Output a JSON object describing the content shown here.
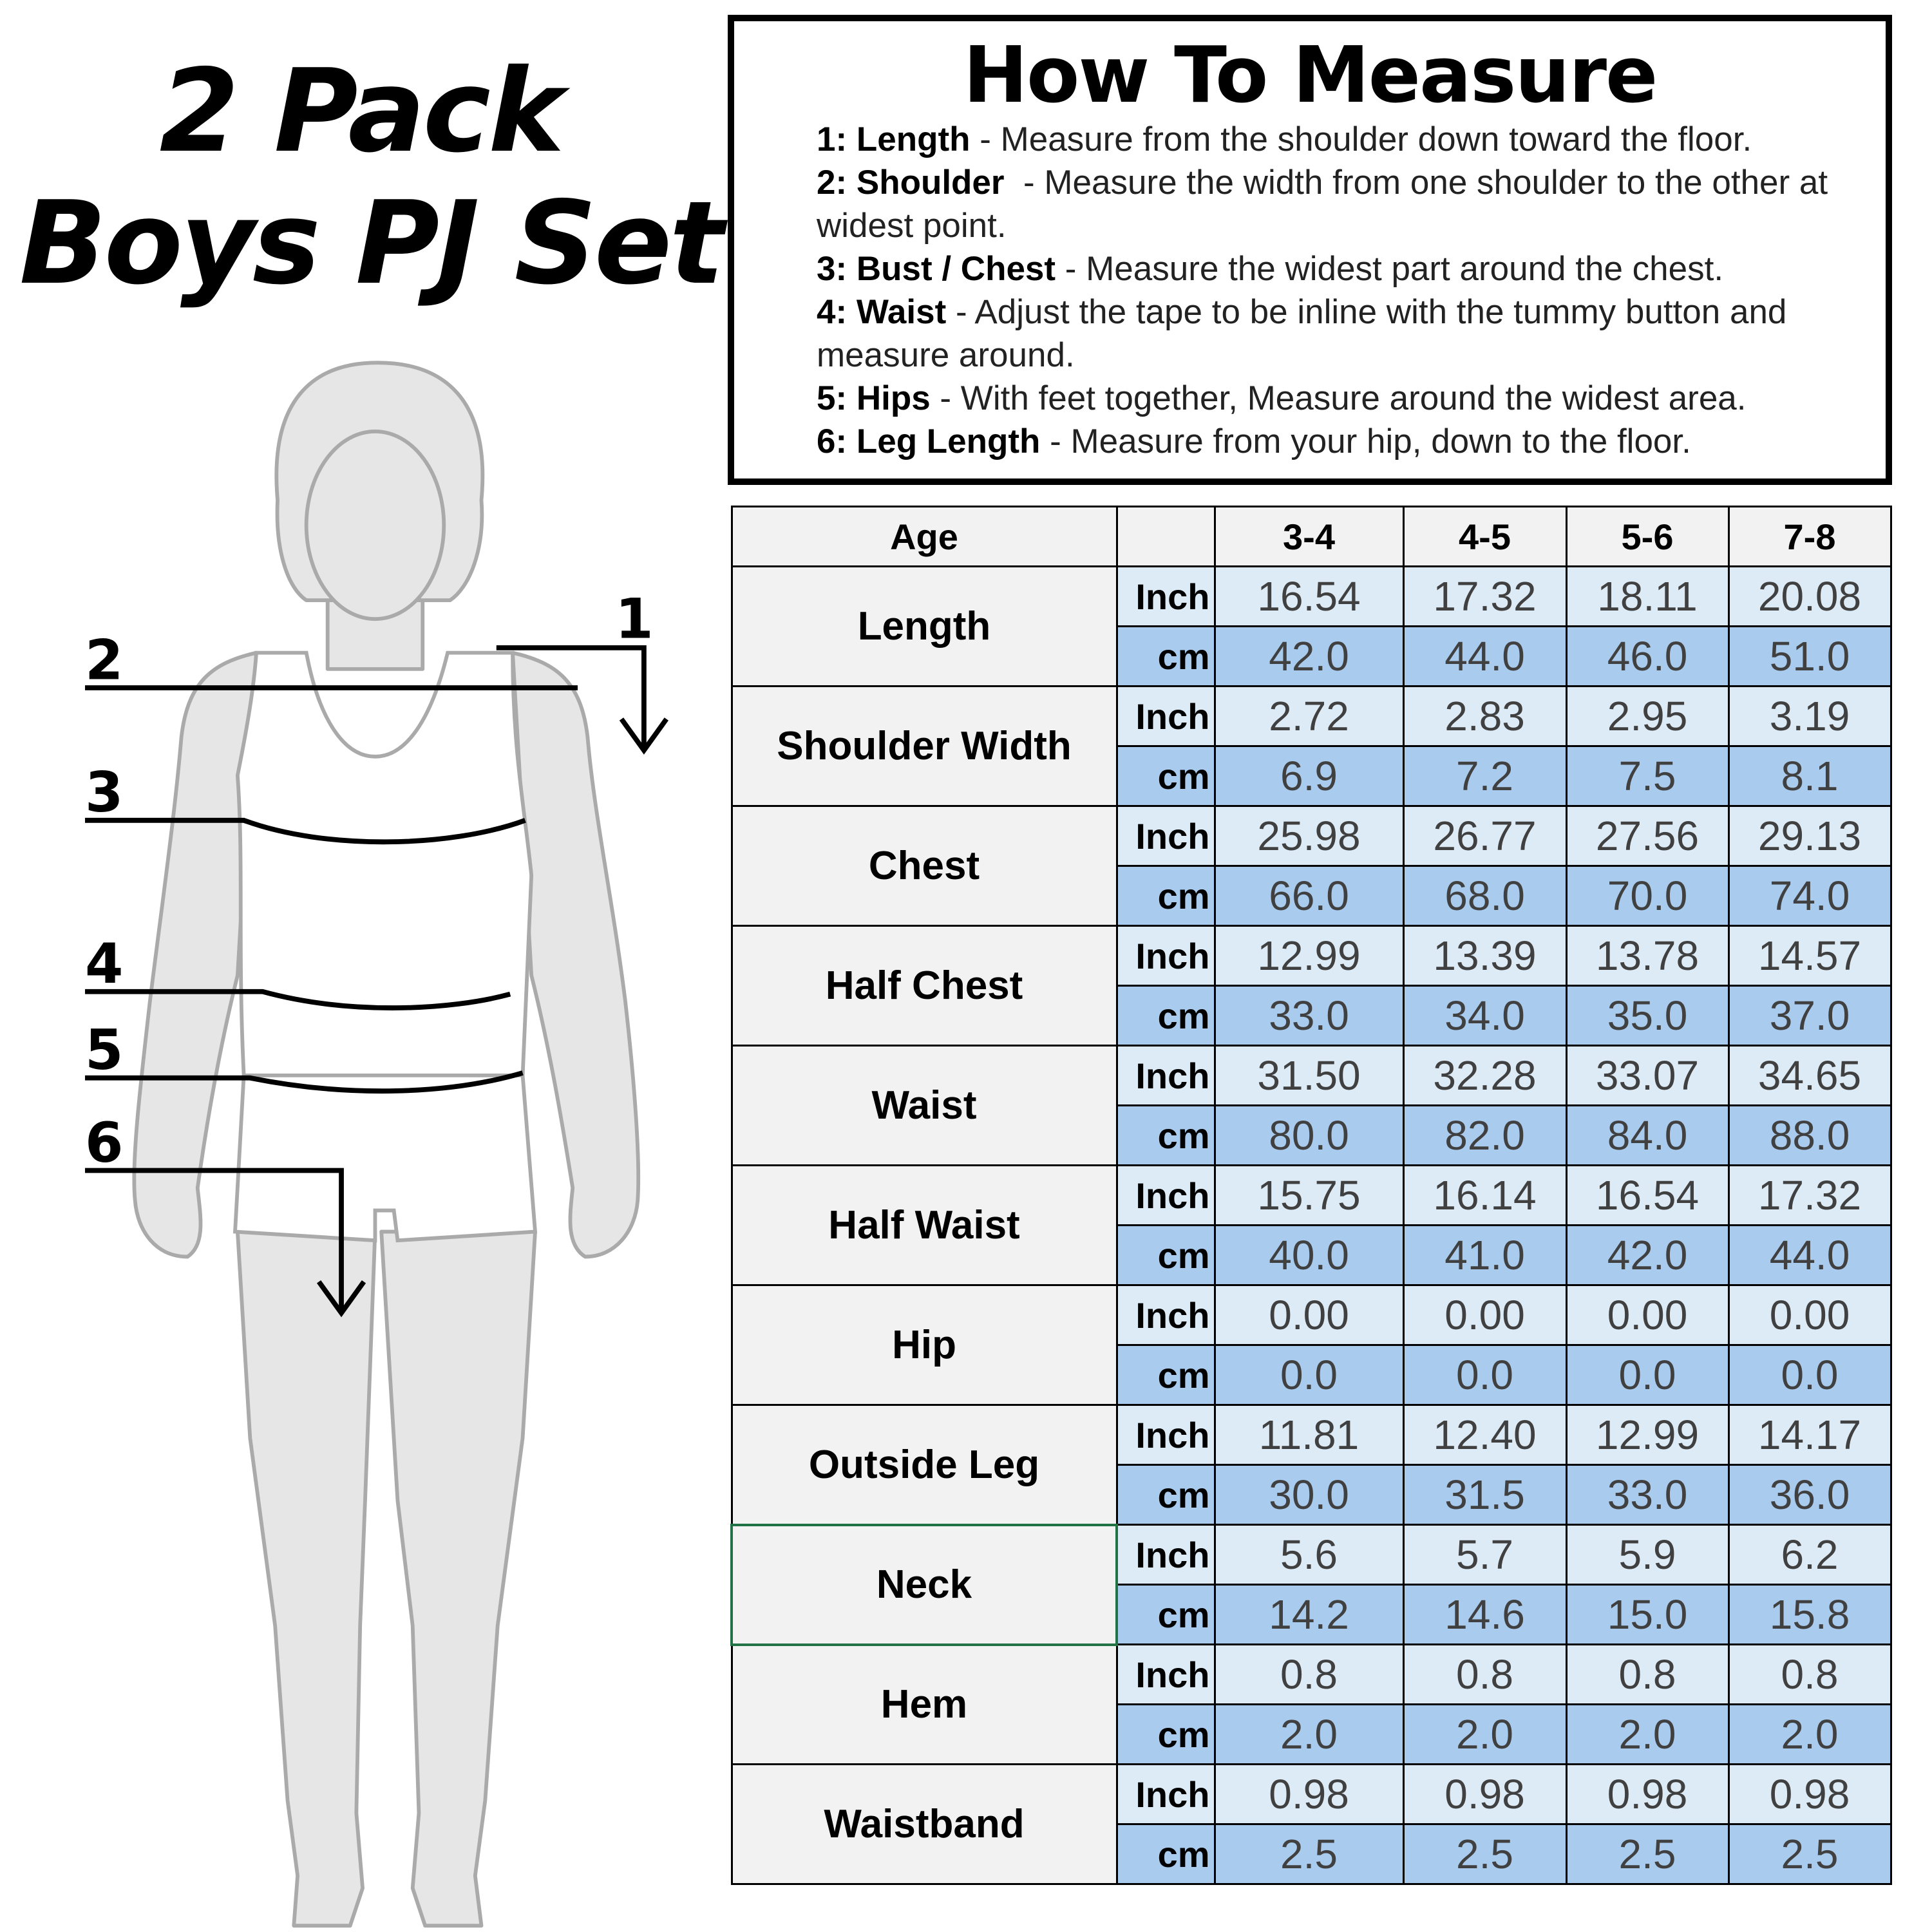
{
  "title": {
    "line1": "2 Pack",
    "line2": "Boys PJ Set"
  },
  "figure": {
    "markers": [
      "1",
      "2",
      "3",
      "4",
      "5",
      "6"
    ],
    "line_color": "#000000",
    "body_fill": "#e6e6e6",
    "garment_fill": "#ffffff"
  },
  "how_to_measure": {
    "heading": "How To Measure",
    "items": [
      {
        "label": "1: Length",
        "text": " - Measure from the shoulder down toward the floor."
      },
      {
        "label": "2: Shoulder",
        "text": "  - Measure the width from one shoulder to the other at widest point."
      },
      {
        "label": "3: Bust / Chest",
        "text": " - Measure the widest part around the chest."
      },
      {
        "label": "4: Waist",
        "text": " - Adjust the tape to be inline with the tummy button and measure around."
      },
      {
        "label": "5: Hips",
        "text": " - With feet together, Measure around the widest area."
      },
      {
        "label": "6: Leg Length",
        "text": " - Measure from your hip, down to the floor."
      }
    ]
  },
  "table": {
    "header_label": "Age",
    "ages": [
      "3-4",
      "4-5",
      "5-6",
      "7-8"
    ],
    "unit_inch": "Inch",
    "unit_cm": "cm",
    "colors": {
      "label_bg": "#f2f2f2",
      "inch_bg": "#ddebf7",
      "cm_bg": "#a9cbee",
      "selected_border": "#217346"
    },
    "rows": [
      {
        "name": "Length",
        "inch": [
          "16.54",
          "17.32",
          "18.11",
          "20.08"
        ],
        "cm": [
          "42.0",
          "44.0",
          "46.0",
          "51.0"
        ]
      },
      {
        "name": "Shoulder Width",
        "inch": [
          "2.72",
          "2.83",
          "2.95",
          "3.19"
        ],
        "cm": [
          "6.9",
          "7.2",
          "7.5",
          "8.1"
        ]
      },
      {
        "name": "Chest",
        "inch": [
          "25.98",
          "26.77",
          "27.56",
          "29.13"
        ],
        "cm": [
          "66.0",
          "68.0",
          "70.0",
          "74.0"
        ]
      },
      {
        "name": "Half Chest",
        "inch": [
          "12.99",
          "13.39",
          "13.78",
          "14.57"
        ],
        "cm": [
          "33.0",
          "34.0",
          "35.0",
          "37.0"
        ]
      },
      {
        "name": "Waist",
        "inch": [
          "31.50",
          "32.28",
          "33.07",
          "34.65"
        ],
        "cm": [
          "80.0",
          "82.0",
          "84.0",
          "88.0"
        ]
      },
      {
        "name": "Half Waist",
        "inch": [
          "15.75",
          "16.14",
          "16.54",
          "17.32"
        ],
        "cm": [
          "40.0",
          "41.0",
          "42.0",
          "44.0"
        ]
      },
      {
        "name": "Hip",
        "inch": [
          "0.00",
          "0.00",
          "0.00",
          "0.00"
        ],
        "cm": [
          "0.0",
          "0.0",
          "0.0",
          "0.0"
        ]
      },
      {
        "name": "Outside Leg",
        "inch": [
          "11.81",
          "12.40",
          "12.99",
          "14.17"
        ],
        "cm": [
          "30.0",
          "31.5",
          "33.0",
          "36.0"
        ]
      },
      {
        "name": "Neck",
        "inch": [
          "5.6",
          "5.7",
          "5.9",
          "6.2"
        ],
        "cm": [
          "14.2",
          "14.6",
          "15.0",
          "15.8"
        ],
        "selected": true
      },
      {
        "name": "Hem",
        "inch": [
          "0.8",
          "0.8",
          "0.8",
          "0.8"
        ],
        "cm": [
          "2.0",
          "2.0",
          "2.0",
          "2.0"
        ]
      },
      {
        "name": "Waistband",
        "inch": [
          "0.98",
          "0.98",
          "0.98",
          "0.98"
        ],
        "cm": [
          "2.5",
          "2.5",
          "2.5",
          "2.5"
        ]
      }
    ]
  }
}
